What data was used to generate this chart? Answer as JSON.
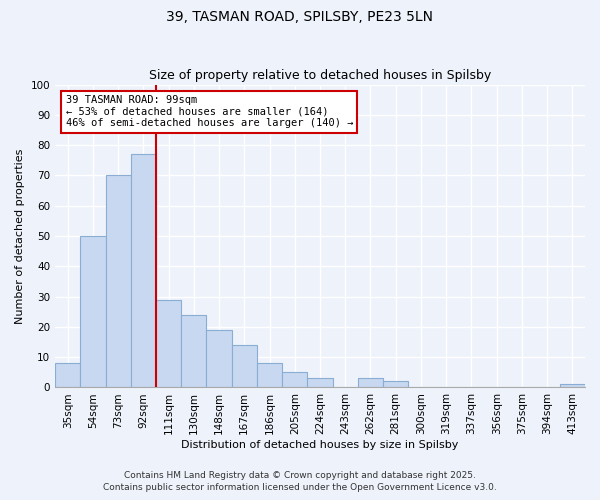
{
  "title": "39, TASMAN ROAD, SPILSBY, PE23 5LN",
  "subtitle": "Size of property relative to detached houses in Spilsby",
  "xlabel": "Distribution of detached houses by size in Spilsby",
  "ylabel": "Number of detached properties",
  "bin_labels": [
    "35sqm",
    "54sqm",
    "73sqm",
    "92sqm",
    "111sqm",
    "130sqm",
    "148sqm",
    "167sqm",
    "186sqm",
    "205sqm",
    "224sqm",
    "243sqm",
    "262sqm",
    "281sqm",
    "300sqm",
    "319sqm",
    "337sqm",
    "356sqm",
    "375sqm",
    "394sqm",
    "413sqm"
  ],
  "bar_values": [
    8,
    50,
    70,
    77,
    29,
    24,
    19,
    14,
    8,
    5,
    3,
    0,
    3,
    2,
    0,
    0,
    0,
    0,
    0,
    0,
    1
  ],
  "bar_color": "#c8d8f0",
  "bar_edge_color": "#8aadd4",
  "vline_x": 3.5,
  "vline_color": "#cc0000",
  "annotation_text": "39 TASMAN ROAD: 99sqm\n← 53% of detached houses are smaller (164)\n46% of semi-detached houses are larger (140) →",
  "annotation_box_facecolor": "#ffffff",
  "annotation_box_edgecolor": "#cc0000",
  "ylim": [
    0,
    100
  ],
  "yticks": [
    0,
    10,
    20,
    30,
    40,
    50,
    60,
    70,
    80,
    90,
    100
  ],
  "footnote1": "Contains HM Land Registry data © Crown copyright and database right 2025.",
  "footnote2": "Contains public sector information licensed under the Open Government Licence v3.0.",
  "bg_color": "#eef2fb",
  "grid_color": "#ffffff",
  "title_fontsize": 10,
  "subtitle_fontsize": 9,
  "axis_label_fontsize": 8,
  "tick_fontsize": 7.5,
  "footnote_fontsize": 6.5
}
